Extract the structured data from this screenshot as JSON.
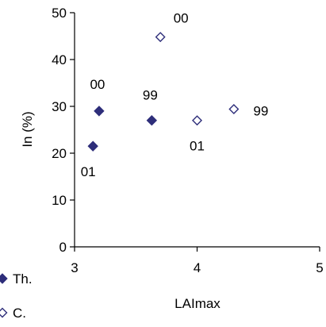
{
  "chart_data": {
    "type": "scatter",
    "xlabel": "LAImax",
    "ylabel": "In (%)",
    "xlim": [
      3,
      5
    ],
    "ylim": [
      0,
      50
    ],
    "xticks": [
      "3",
      "4",
      "5"
    ],
    "yticks": [
      "0",
      "10",
      "20",
      "30",
      "40",
      "50"
    ],
    "grid": false,
    "legend_position": "bottom-left",
    "series": [
      {
        "name": "Th.",
        "marker": "filled-diamond",
        "color": "#2e2e7a",
        "points": [
          {
            "x": 3.15,
            "y": 21.5,
            "label": "01"
          },
          {
            "x": 3.2,
            "y": 29.0,
            "label": "00"
          },
          {
            "x": 3.63,
            "y": 27.0,
            "label": "99"
          }
        ]
      },
      {
        "name": "C.",
        "marker": "open-diamond",
        "color": "#2e2e7a",
        "points": [
          {
            "x": 3.7,
            "y": 44.8,
            "label": "00"
          },
          {
            "x": 4.0,
            "y": 27.0,
            "label": "01"
          },
          {
            "x": 4.3,
            "y": 29.4,
            "label": "99"
          }
        ]
      }
    ]
  }
}
